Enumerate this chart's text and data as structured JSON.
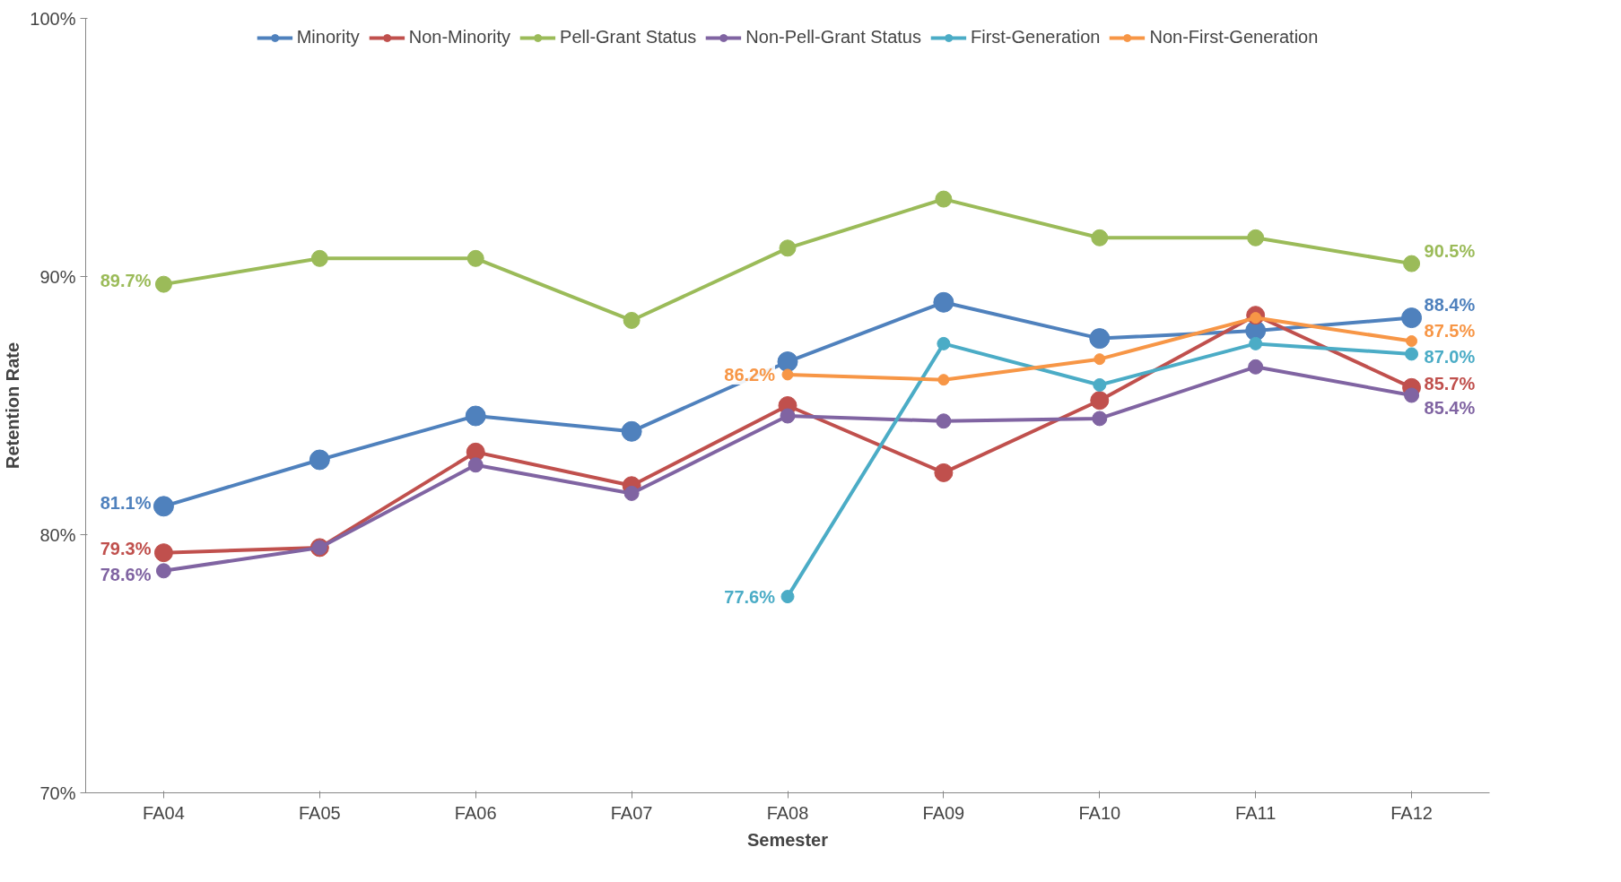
{
  "chart_data": {
    "type": "line",
    "xlabel": "Semester",
    "ylabel": "Retention Rate",
    "categories": [
      "FA04",
      "FA05",
      "FA06",
      "FA07",
      "FA08",
      "FA09",
      "FA10",
      "FA11",
      "FA12"
    ],
    "ylim": [
      70,
      100
    ],
    "yticks": [
      {
        "value": 70,
        "label": "70%"
      },
      {
        "value": 80,
        "label": "80%"
      },
      {
        "value": 90,
        "label": "90%"
      },
      {
        "value": 100,
        "label": "100%"
      }
    ],
    "grid": false,
    "legend": "top",
    "marker": "circle",
    "line_style": "solid",
    "series": [
      {
        "name": "Minority",
        "color": "#4f81bd",
        "values": [
          81.1,
          82.9,
          84.6,
          84.0,
          86.7,
          89.0,
          87.6,
          87.9,
          88.4
        ],
        "value_labels": [
          "81.1%",
          null,
          null,
          null,
          null,
          null,
          null,
          null,
          "88.4%"
        ]
      },
      {
        "name": "Non-Minority",
        "color": "#c0504d",
        "values": [
          79.3,
          79.5,
          83.2,
          81.9,
          85.0,
          82.4,
          85.2,
          88.5,
          85.7
        ],
        "value_labels": [
          "79.3%",
          null,
          null,
          null,
          null,
          null,
          null,
          null,
          "85.7%"
        ]
      },
      {
        "name": "Pell-Grant Status",
        "color": "#9bbb59",
        "values": [
          89.7,
          90.7,
          90.7,
          88.3,
          91.1,
          93.0,
          91.5,
          91.5,
          90.5
        ],
        "value_labels": [
          "89.7%",
          null,
          null,
          null,
          null,
          null,
          null,
          null,
          "90.5%"
        ]
      },
      {
        "name": "Non-Pell-Grant Status",
        "color": "#8064a2",
        "values": [
          78.6,
          79.5,
          82.7,
          81.6,
          84.6,
          84.4,
          84.5,
          86.5,
          85.4
        ],
        "value_labels": [
          "78.6%",
          null,
          null,
          null,
          null,
          null,
          null,
          null,
          "85.4%"
        ]
      },
      {
        "name": "First-Generation",
        "color": "#4bacc6",
        "values": [
          null,
          null,
          null,
          null,
          77.6,
          87.4,
          85.8,
          87.4,
          87.0
        ],
        "value_labels": [
          null,
          null,
          null,
          null,
          "77.6%",
          null,
          null,
          null,
          "87.0%"
        ]
      },
      {
        "name": "Non-First-Generation",
        "color": "#f79646",
        "values": [
          null,
          null,
          null,
          null,
          86.2,
          86.0,
          86.8,
          88.4,
          87.5
        ],
        "value_labels": [
          null,
          null,
          null,
          null,
          "86.2%",
          null,
          null,
          null,
          "87.5%"
        ]
      }
    ]
  }
}
